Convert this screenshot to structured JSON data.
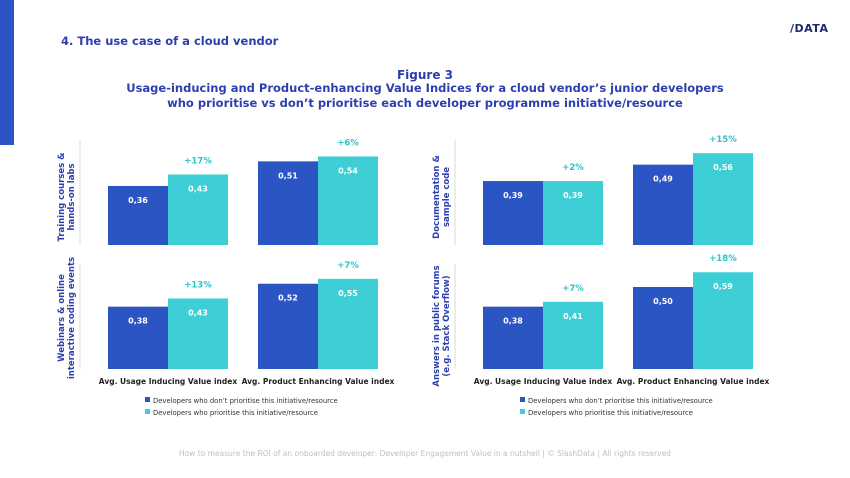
{
  "header": {
    "section_title": "4. The use case of a cloud vendor",
    "logo": "/DATA"
  },
  "figure": {
    "label": "Figure 3",
    "title": "Usage-inducing and Product-enhancing Value Indices for a cloud vendor’s junior developers who prioritise vs don’t prioritise each developer programme initiative/resource"
  },
  "footer": "How to measure the ROI of an onboarded developer: Developer Engagement Value in a nutshell | © SlashData | All rights reserved",
  "colors": {
    "not_prioritise": "#2c55c4",
    "prioritise": "#3ecfd6",
    "uplift": "#2fc3c9",
    "accent": "#2c3fae"
  },
  "chart_data": [
    {
      "type": "bar",
      "ylabel": "Training courses & hands-on labs",
      "categories": [
        "Avg. Usage Inducing Value index",
        "Avg. Product Enhancing Value index"
      ],
      "series": [
        {
          "name": "Developers who don’t prioritise this initiative/resource",
          "values": [
            0.36,
            0.51
          ],
          "labels": [
            "0,36",
            "0,51"
          ]
        },
        {
          "name": "Developers who prioritise this initiative/resource",
          "values": [
            0.43,
            0.54
          ],
          "labels": [
            "0,43",
            "0,54"
          ]
        }
      ],
      "uplift": [
        "+17%",
        "+6%"
      ],
      "ylim": [
        0,
        0.6
      ]
    },
    {
      "type": "bar",
      "ylabel": "Webinars & online interactive coding events",
      "categories": [
        "Avg. Usage Inducing Value index",
        "Avg. Product Enhancing Value index"
      ],
      "series": [
        {
          "name": "Developers who don’t prioritise this initiative/resource",
          "values": [
            0.38,
            0.52
          ],
          "labels": [
            "0,38",
            "0,52"
          ]
        },
        {
          "name": "Developers who prioritise this initiative/resource",
          "values": [
            0.43,
            0.55
          ],
          "labels": [
            "0,43",
            "0,55"
          ]
        }
      ],
      "uplift": [
        "+13%",
        "+7%"
      ],
      "ylim": [
        0,
        0.6
      ]
    },
    {
      "type": "bar",
      "ylabel": "Documentation & sample code",
      "categories": [
        "Avg. Usage Inducing Value index",
        "Avg. Product Enhancing Value index"
      ],
      "series": [
        {
          "name": "Developers who don’t prioritise this initiative/resource",
          "values": [
            0.39,
            0.49
          ],
          "labels": [
            "0,39",
            "0,49"
          ]
        },
        {
          "name": "Developers who prioritise this initiative/resource",
          "values": [
            0.39,
            0.56
          ],
          "labels": [
            "0,39",
            "0,56"
          ]
        }
      ],
      "uplift": [
        "+2%",
        "+15%"
      ],
      "ylim": [
        0,
        0.6
      ]
    },
    {
      "type": "bar",
      "ylabel": "Answers in public forums (e.g. Stack Overflow)",
      "categories": [
        "Avg. Usage Inducing Value index",
        "Avg. Product Enhancing Value index"
      ],
      "series": [
        {
          "name": "Developers who don’t prioritise this initiative/resource",
          "values": [
            0.38,
            0.5
          ],
          "labels": [
            "0,38",
            "0,50"
          ]
        },
        {
          "name": "Developers who prioritise this initiative/resource",
          "values": [
            0.41,
            0.59
          ],
          "labels": [
            "0,41",
            "0,59"
          ]
        }
      ],
      "uplift": [
        "+7%",
        "+18%"
      ],
      "ylim": [
        0,
        0.6
      ]
    }
  ]
}
